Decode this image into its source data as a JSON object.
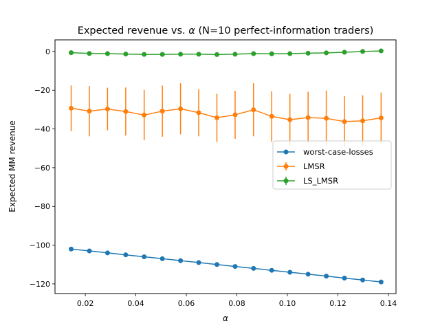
{
  "chart_data": {
    "type": "line",
    "title_prefix": "Expected revenue vs. ",
    "title_symbol": "α",
    "title_suffix": " (N=10 perfect-information traders)",
    "xlabel": "α",
    "ylabel": "Expected MM revenue",
    "xlim": [
      0.008,
      0.143
    ],
    "ylim": [
      -125,
      6
    ],
    "xticks": [
      0.02,
      0.04,
      0.06,
      0.08,
      0.1,
      0.12,
      0.14
    ],
    "xtick_labels": [
      "0.02",
      "0.04",
      "0.06",
      "0.08",
      "0.10",
      "0.12",
      "0.14"
    ],
    "yticks": [
      0,
      -20,
      -40,
      -60,
      -80,
      -100,
      -120
    ],
    "ytick_labels": [
      "0",
      "−20",
      "−40",
      "−60",
      "−80",
      "−100",
      "−120"
    ],
    "grid": false,
    "legend_position": "center-right",
    "x": [
      0.0144,
      0.0216,
      0.0288,
      0.036,
      0.0433,
      0.0505,
      0.0577,
      0.0649,
      0.0721,
      0.0793,
      0.0866,
      0.0938,
      0.101,
      0.1082,
      0.1154,
      0.1226,
      0.1298,
      0.1371
    ],
    "series": [
      {
        "name": "worst-case-losses",
        "color": "#1f77b4",
        "values": [
          -102,
          -103,
          -104,
          -105,
          -106,
          -107,
          -108,
          -109,
          -110,
          -111,
          -112,
          -113,
          -114,
          -115,
          -116,
          -117,
          -118,
          -119
        ],
        "errors": null
      },
      {
        "name": "LMSR",
        "color": "#ff7f0e",
        "values": [
          -29.3,
          -30.8,
          -29.7,
          -31.0,
          -32.8,
          -30.8,
          -29.6,
          -31.6,
          -34.2,
          -32.7,
          -30.1,
          -33.5,
          -35.2,
          -34.1,
          -34.5,
          -36.2,
          -35.8,
          -34.3
        ],
        "errors": [
          11.8,
          13.0,
          11.0,
          12.4,
          13.0,
          13.2,
          13.2,
          12.2,
          12.4,
          12.4,
          13.7,
          13.0,
          13.3,
          13.3,
          14.3,
          13.2,
          13.2,
          13.1
        ]
      },
      {
        "name": "LS_LMSR",
        "color": "#2ca02c",
        "values": [
          -0.6,
          -1.0,
          -1.1,
          -1.3,
          -1.5,
          -1.5,
          -1.4,
          -1.4,
          -1.6,
          -1.4,
          -1.1,
          -1.2,
          -1.1,
          -0.9,
          -0.7,
          -0.4,
          0.0,
          0.3
        ],
        "errors": [
          0.9,
          0.9,
          0.9,
          0.9,
          0.9,
          0.9,
          0.9,
          0.9,
          0.9,
          0.9,
          0.9,
          0.9,
          0.9,
          0.9,
          0.9,
          0.9,
          0.9,
          0.9
        ]
      }
    ]
  }
}
